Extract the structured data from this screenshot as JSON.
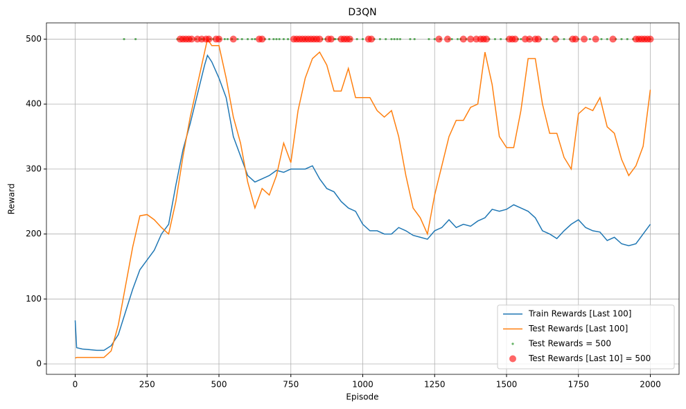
{
  "chart_data": {
    "type": "line",
    "title": "D3QN",
    "x_label": "Episode",
    "y_label": "Reward",
    "xlim": [
      -100,
      2100
    ],
    "ylim": [
      -16,
      525
    ],
    "xticks": [
      0,
      250,
      500,
      750,
      1000,
      1250,
      1500,
      1750,
      2000
    ],
    "yticks": [
      0,
      100,
      200,
      300,
      400,
      500
    ],
    "grid": true,
    "legend": "lower right",
    "x": [
      0,
      5,
      25,
      50,
      75,
      100,
      125,
      150,
      175,
      200,
      225,
      250,
      275,
      300,
      325,
      350,
      375,
      400,
      425,
      450,
      460,
      475,
      500,
      525,
      550,
      575,
      600,
      625,
      650,
      675,
      700,
      725,
      750,
      775,
      800,
      825,
      850,
      875,
      900,
      925,
      950,
      975,
      1000,
      1025,
      1050,
      1075,
      1100,
      1125,
      1150,
      1175,
      1200,
      1225,
      1250,
      1275,
      1300,
      1325,
      1350,
      1375,
      1400,
      1425,
      1450,
      1475,
      1500,
      1525,
      1550,
      1575,
      1600,
      1625,
      1650,
      1675,
      1700,
      1725,
      1750,
      1775,
      1800,
      1825,
      1850,
      1875,
      1900,
      1925,
      1950,
      1975,
      2000
    ],
    "series": [
      {
        "name": "Train Rewards [Last 100]",
        "type": "line",
        "color": "#1f77b4",
        "values": [
          67,
          25,
          23,
          22,
          21,
          21,
          28,
          45,
          80,
          115,
          145,
          160,
          175,
          200,
          215,
          275,
          330,
          370,
          415,
          460,
          475,
          465,
          440,
          410,
          350,
          320,
          290,
          280,
          285,
          290,
          298,
          295,
          300,
          300,
          300,
          305,
          285,
          270,
          265,
          250,
          240,
          235,
          215,
          205,
          205,
          200,
          200,
          210,
          205,
          198,
          195,
          192,
          205,
          210,
          222,
          210,
          215,
          212,
          220,
          225,
          238,
          235,
          238,
          245,
          240,
          235,
          225,
          205,
          200,
          193,
          205,
          215,
          222,
          210,
          205,
          203,
          190,
          195,
          185,
          182,
          185,
          200,
          215
        ]
      },
      {
        "name": "Test Rewards [Last 100]",
        "type": "line",
        "color": "#ff7f0e",
        "values": [
          9,
          10,
          10,
          10,
          10,
          10,
          20,
          60,
          120,
          180,
          228,
          230,
          222,
          210,
          200,
          250,
          320,
          380,
          430,
          480,
          500,
          490,
          490,
          440,
          380,
          340,
          280,
          240,
          270,
          260,
          290,
          340,
          310,
          390,
          440,
          470,
          480,
          460,
          420,
          420,
          455,
          410,
          410,
          410,
          390,
          380,
          390,
          350,
          290,
          240,
          225,
          200,
          260,
          305,
          350,
          375,
          375,
          395,
          400,
          480,
          430,
          350,
          333,
          333,
          390,
          470,
          470,
          400,
          355,
          355,
          318,
          300,
          385,
          395,
          390,
          410,
          365,
          355,
          315,
          290,
          305,
          335,
          422
        ]
      },
      {
        "name": "Test Rewards = 500",
        "type": "scatter",
        "color": "green",
        "x": [
          170,
          210,
          355,
          362,
          378,
          395,
          405,
          420,
          440,
          448,
          470,
          480,
          505,
          520,
          530,
          545,
          565,
          580,
          600,
          615,
          625,
          660,
          675,
          690,
          700,
          710,
          725,
          740,
          770,
          800,
          830,
          860,
          870,
          900,
          905,
          915,
          960,
          980,
          1000,
          1040,
          1060,
          1080,
          1100,
          1110,
          1120,
          1130,
          1165,
          1180,
          1230,
          1250,
          1270,
          1300,
          1310,
          1330,
          1340,
          1360,
          1440,
          1460,
          1480,
          1500,
          1540,
          1550,
          1580,
          1620,
          1640,
          1660,
          1680,
          1700,
          1720,
          1750,
          1790,
          1830,
          1850,
          1880,
          1900,
          1920,
          1940,
          1960,
          1980,
          2000
        ],
        "values": [
          500,
          500,
          500,
          500,
          500,
          500,
          500,
          500,
          500,
          500,
          500,
          500,
          500,
          500,
          500,
          500,
          500,
          500,
          500,
          500,
          500,
          500,
          500,
          500,
          500,
          500,
          500,
          500,
          500,
          500,
          500,
          500,
          500,
          500,
          500,
          500,
          500,
          500,
          500,
          500,
          500,
          500,
          500,
          500,
          500,
          500,
          500,
          500,
          500,
          500,
          500,
          500,
          500,
          500,
          500,
          500,
          500,
          500,
          500,
          500,
          500,
          500,
          500,
          500,
          500,
          500,
          500,
          500,
          500,
          500,
          500,
          500,
          500,
          500,
          500,
          500,
          500,
          500,
          500,
          500
        ]
      },
      {
        "name": "Test Rewards [Last 10] = 500",
        "type": "scatter",
        "color": "red",
        "x": [
          365,
          375,
          385,
          395,
          405,
          425,
          440,
          455,
          465,
          490,
          500,
          550,
          640,
          650,
          760,
          770,
          780,
          790,
          800,
          810,
          820,
          830,
          840,
          850,
          880,
          890,
          925,
          935,
          945,
          955,
          1020,
          1030,
          1265,
          1295,
          1350,
          1375,
          1395,
          1410,
          1420,
          1430,
          1510,
          1520,
          1530,
          1565,
          1580,
          1600,
          1610,
          1670,
          1730,
          1740,
          1770,
          1810,
          1870,
          1950,
          1960,
          1970,
          1980,
          1990,
          2000
        ],
        "values": [
          500,
          500,
          500,
          500,
          500,
          500,
          500,
          500,
          500,
          500,
          500,
          500,
          500,
          500,
          500,
          500,
          500,
          500,
          500,
          500,
          500,
          500,
          500,
          500,
          500,
          500,
          500,
          500,
          500,
          500,
          500,
          500,
          500,
          500,
          500,
          500,
          500,
          500,
          500,
          500,
          500,
          500,
          500,
          500,
          500,
          500,
          500,
          500,
          500,
          500,
          500,
          500,
          500,
          500,
          500,
          500,
          500,
          500,
          500
        ]
      }
    ]
  }
}
